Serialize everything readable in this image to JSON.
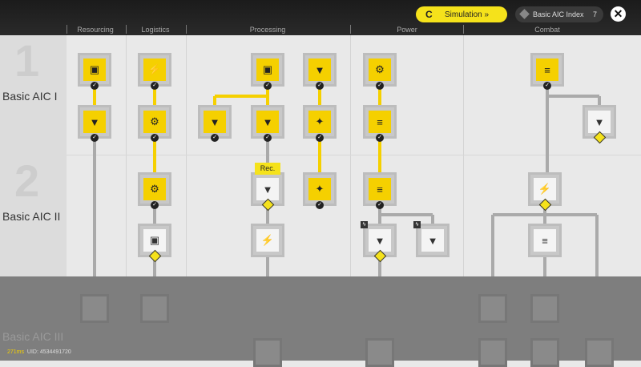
{
  "header": {
    "simulation_label": "Simulation",
    "index_label": "Basic AIC Index",
    "index_value": "7",
    "categories": [
      "Resourcing",
      "Logistics",
      "Processing",
      "Power",
      "Combat"
    ]
  },
  "tiers": [
    "Basic AIC I",
    "Basic AIC II",
    "Basic AIC III"
  ],
  "tier_numerals": [
    "1",
    "2"
  ],
  "tooltip": "Rec.",
  "footer": {
    "ping": "271ms",
    "uid": "UID: 4534491720"
  },
  "colors": {
    "accent": "#f5d000",
    "header": "#1b1b1b"
  }
}
